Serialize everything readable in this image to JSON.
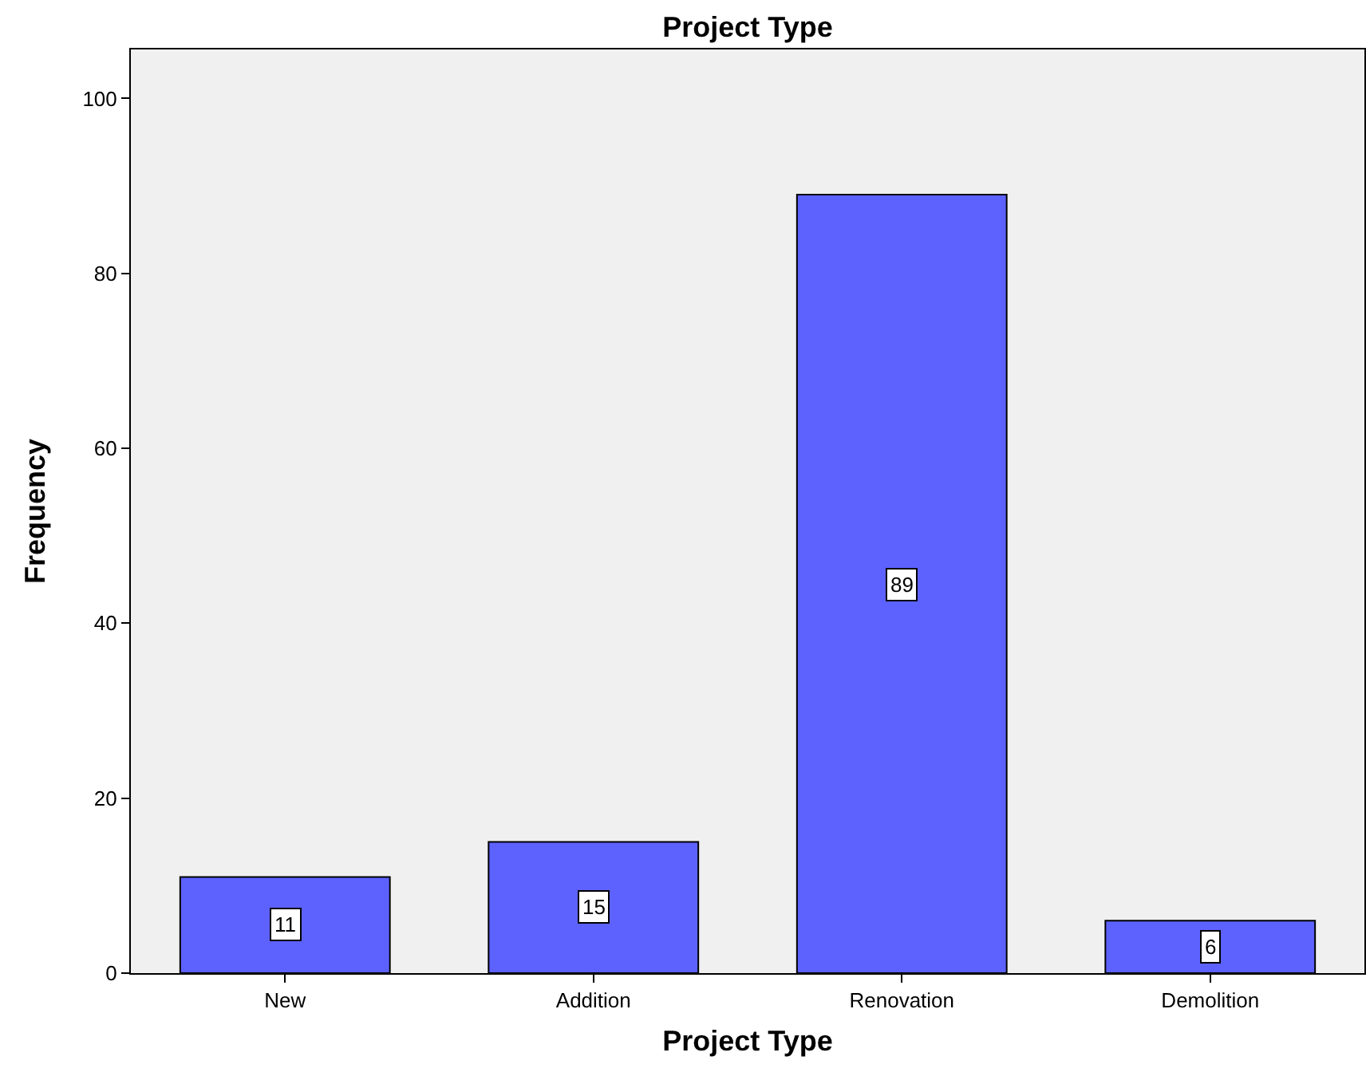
{
  "chart_data": {
    "type": "bar",
    "title": "Project Type",
    "xlabel": "Project Type",
    "ylabel": "Frequency",
    "categories": [
      "New",
      "Addition",
      "Renovation",
      "Demolition"
    ],
    "values": [
      11,
      15,
      89,
      6
    ],
    "color": "#5d62ff",
    "ylim": [
      0,
      105.6
    ],
    "yticks": [
      0,
      20,
      40,
      60,
      80,
      100
    ],
    "grid": false,
    "legend": false,
    "data_labels": true
  }
}
